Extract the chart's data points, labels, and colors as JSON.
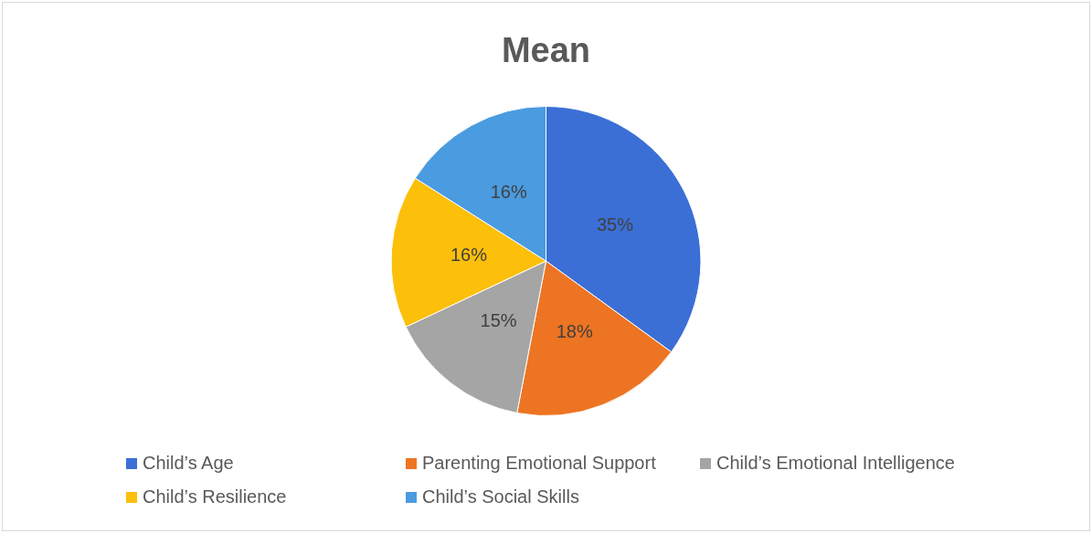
{
  "chart_data": {
    "type": "pie",
    "title": "Mean",
    "categories": [
      "Child’s Age",
      "Parenting Emotional Support",
      "Child’s Emotional Intelligence",
      "Child’s Resilience",
      "Child’s Social Skills"
    ],
    "values": [
      35,
      18,
      15,
      16,
      16
    ],
    "colors": [
      "#3b6fd6",
      "#ed7422",
      "#a5a5a5",
      "#fcbf0a",
      "#4a9be0"
    ],
    "value_labels": [
      "35%",
      "18%",
      "15%",
      "16%",
      "16%"
    ],
    "legend": "bottom"
  }
}
